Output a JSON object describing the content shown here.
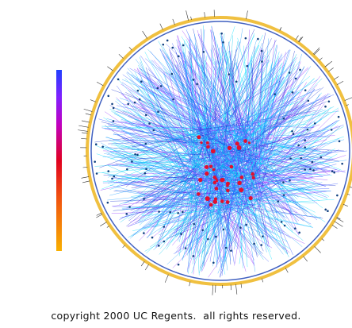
{
  "caption": "copyright 2000 UC Regents.  all rights reserved."
}
